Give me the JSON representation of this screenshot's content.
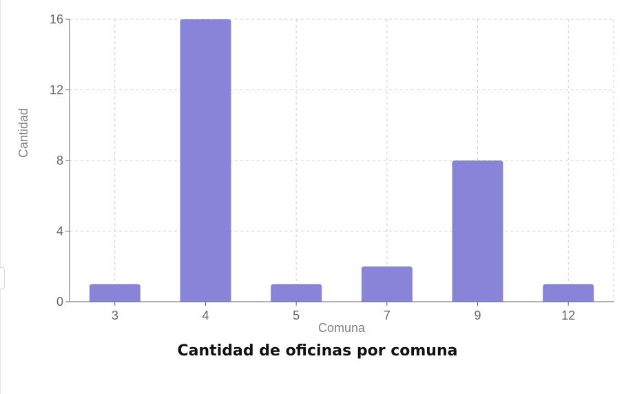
{
  "chart_data": {
    "type": "bar",
    "title": "Cantidad de oficinas por comuna",
    "xlabel": "Comuna",
    "ylabel": "Cantidad",
    "categories": [
      "3",
      "4",
      "5",
      "7",
      "9",
      "12"
    ],
    "values": [
      1,
      16,
      1,
      2,
      8,
      1
    ],
    "ylim": [
      0,
      16
    ],
    "yticks": [
      0,
      4,
      8,
      12,
      16
    ],
    "grid": true,
    "bar_color": "#8884d8",
    "grid_color": "#cccccc",
    "axis_color": "#666666"
  }
}
